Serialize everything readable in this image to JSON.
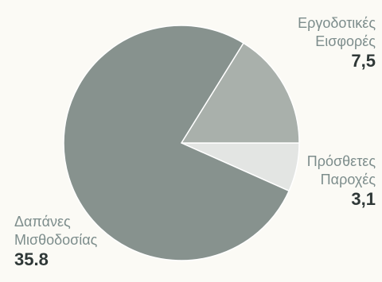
{
  "chart_data": {
    "type": "pie",
    "categories": [
      "Δαπάνες Μισθοδοσίας",
      "Εργοδοτικές Εισφορές",
      "Πρόσθετες Παροχές"
    ],
    "values": [
      35.8,
      7.5,
      3.1
    ],
    "value_labels": [
      "35.8",
      "7,5",
      "3,1"
    ],
    "colors": [
      "#87928e",
      "#a9b0ab",
      "#e3e5e3"
    ],
    "start_angle_deg": 0,
    "direction": "clockwise-from-right",
    "slice_order": [
      "Πρόσθετες Παροχές",
      "Δαπάνες Μισθοδοσίας",
      "Εργοδοτικές Εισφορές"
    ]
  },
  "labels": {
    "employer": {
      "line1": "Εργοδοτικές",
      "line2": "Εισφορές",
      "value": "7,5"
    },
    "additional": {
      "line1": "Πρόσθετες",
      "line2": "Παροχές",
      "value": "3,1"
    },
    "payroll": {
      "line1": "Δαπάνες",
      "line2": "Μισθοδοσίας",
      "value": "35.8"
    }
  },
  "colors": {
    "background": "#fbfaf5",
    "label_text": "#7d8d8c",
    "value_text": "#2f3837",
    "slice_border": "#ffffff"
  }
}
